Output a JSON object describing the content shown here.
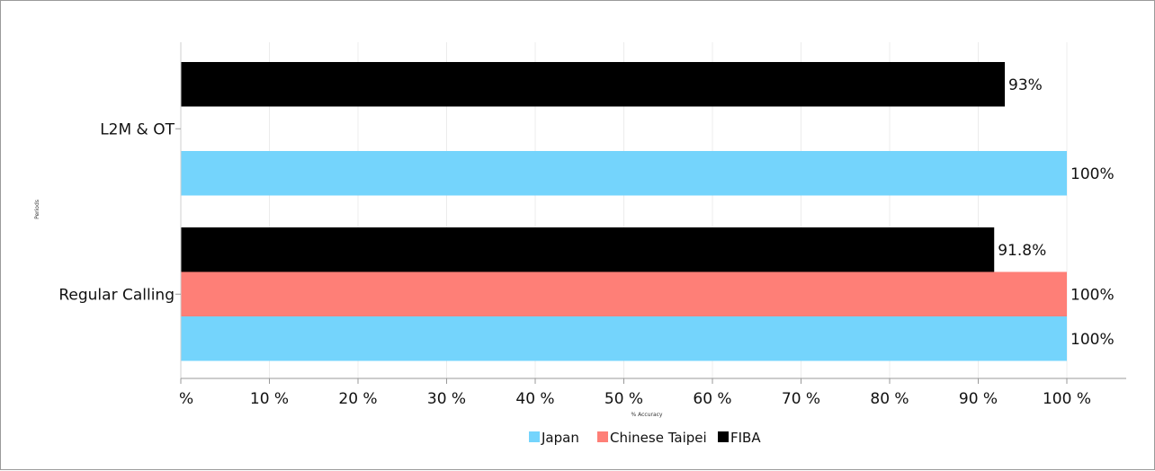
{
  "chart_data": {
    "type": "bar",
    "orientation": "horizontal",
    "categories": [
      "L2M & OT",
      "Regular Calling"
    ],
    "series": [
      {
        "name": "FIBA",
        "color": "#000000",
        "values": [
          93,
          91.8
        ]
      },
      {
        "name": "Chinese Taipei",
        "color": "#fe7f77",
        "values": [
          null,
          100
        ]
      },
      {
        "name": "Japan",
        "color": "#74d4fc",
        "values": [
          100,
          100
        ]
      }
    ],
    "data_labels": [
      [
        "93%",
        "91.8%"
      ],
      [
        null,
        "100%"
      ],
      [
        "100%",
        "100%"
      ]
    ],
    "xlabel": "% Accuracy",
    "ylabel": "Periods",
    "xlim": [
      0,
      100
    ],
    "x_ticks": [
      0,
      10,
      20,
      30,
      40,
      50,
      60,
      70,
      80,
      90,
      100
    ],
    "x_tick_labels": [
      "%",
      "10 %",
      "20 %",
      "30 %",
      "40 %",
      "50 %",
      "60 %",
      "70 %",
      "80 %",
      "90 %",
      "100 %"
    ],
    "legend": {
      "position": "bottom",
      "items": [
        "Japan",
        "Chinese Taipei",
        "FIBA"
      ]
    },
    "grid": true
  }
}
